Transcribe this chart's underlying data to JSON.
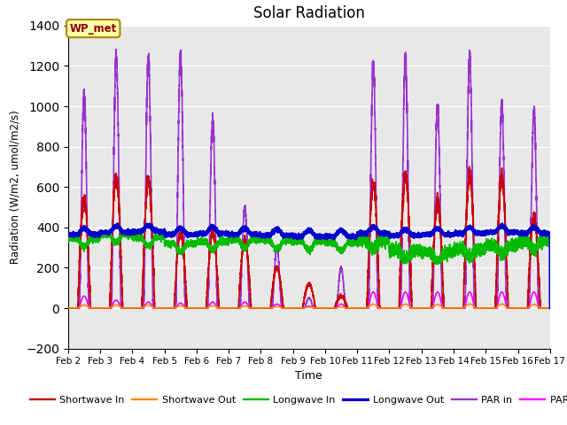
{
  "title": "Solar Radiation",
  "xlabel": "Time",
  "ylabel": "Radiation (W/m2, umol/m2/s)",
  "ylim": [
    -200,
    1400
  ],
  "yticks": [
    -200,
    0,
    200,
    400,
    600,
    800,
    1000,
    1200,
    1400
  ],
  "x_tick_labels": [
    "Feb 2",
    "Feb 3",
    "Feb 4",
    "Feb 5",
    "Feb 6",
    "Feb 7",
    "Feb 8",
    "Feb 9",
    "Feb 10",
    "Feb 11",
    "Feb 12",
    "Feb 13",
    "Feb 14",
    "Feb 15",
    "Feb 16",
    "Feb 17"
  ],
  "annotation_text": "WP_met",
  "bg_color": "#E8E8E8",
  "legend_entries": [
    {
      "label": "Shortwave In",
      "color": "#CC0000",
      "lw": 1.2
    },
    {
      "label": "Shortwave Out",
      "color": "#FF8800",
      "lw": 1.2
    },
    {
      "label": "Longwave In",
      "color": "#00BB00",
      "lw": 1.2
    },
    {
      "label": "Longwave Out",
      "color": "#0000CC",
      "lw": 1.8
    },
    {
      "label": "PAR in",
      "color": "#9933CC",
      "lw": 1.2
    },
    {
      "label": "PAR out",
      "color": "#FF00FF",
      "lw": 1.2
    }
  ],
  "day_peaks_par": [
    1050,
    1250,
    1240,
    1250,
    930,
    500,
    300,
    50,
    200,
    1200,
    1240,
    1000,
    1250,
    1000,
    970
  ],
  "day_peaks_sw": [
    540,
    650,
    635,
    375,
    375,
    330,
    200,
    120,
    60,
    610,
    660,
    525,
    660,
    640,
    450
  ],
  "day_peaks_pout": [
    60,
    40,
    30,
    25,
    30,
    30,
    20,
    10,
    20,
    80,
    80,
    80,
    80,
    80,
    80
  ],
  "day_peaks_swout": [
    15,
    15,
    15,
    12,
    12,
    10,
    8,
    5,
    5,
    20,
    20,
    18,
    20,
    20,
    18
  ],
  "lw_in_base": [
    345,
    365,
    350,
    320,
    330,
    340,
    335,
    330,
    325,
    335,
    285,
    275,
    295,
    310,
    330
  ],
  "lw_out_base": [
    365,
    375,
    380,
    365,
    370,
    365,
    360,
    355,
    355,
    370,
    360,
    365,
    370,
    375,
    370
  ]
}
